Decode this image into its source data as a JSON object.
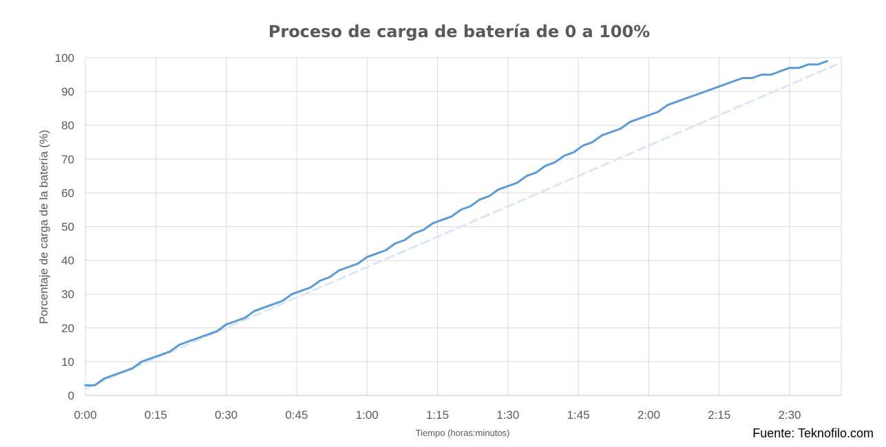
{
  "colors": {
    "series_measured": "#5b9bd5",
    "series_linear": "#dae6f4",
    "grid": "#d9d9d9",
    "text": "#595959"
  },
  "source": "Fuente: Teknofilo.com",
  "chart_data": {
    "type": "line",
    "title": "Proceso de carga de batería de 0 a 100%",
    "xlabel": "Tiempo (horas:minutos)",
    "ylabel": "Porcentaje de carga de la batería (%)",
    "xlim": [
      "0:00",
      "2:41"
    ],
    "ylim": [
      0,
      100
    ],
    "x_ticks": [
      "0:00",
      "0:15",
      "0:30",
      "0:45",
      "1:00",
      "1:15",
      "1:30",
      "1:45",
      "2:00",
      "2:15",
      "2:30"
    ],
    "y_ticks": [
      0,
      10,
      20,
      30,
      40,
      50,
      60,
      70,
      80,
      90,
      100
    ],
    "grid": true,
    "legend": "none",
    "series": [
      {
        "style": "solid",
        "x": [
          "0:00",
          "0:02",
          "0:04",
          "0:06",
          "0:08",
          "0:10",
          "0:12",
          "0:14",
          "0:16",
          "0:18",
          "0:20",
          "0:22",
          "0:24",
          "0:26",
          "0:28",
          "0:30",
          "0:32",
          "0:34",
          "0:36",
          "0:38",
          "0:40",
          "0:42",
          "0:44",
          "0:46",
          "0:48",
          "0:50",
          "0:52",
          "0:54",
          "0:56",
          "0:58",
          "1:00",
          "1:02",
          "1:04",
          "1:06",
          "1:08",
          "1:10",
          "1:12",
          "1:14",
          "1:16",
          "1:18",
          "1:20",
          "1:22",
          "1:24",
          "1:26",
          "1:28",
          "1:30",
          "1:32",
          "1:34",
          "1:36",
          "1:38",
          "1:40",
          "1:42",
          "1:44",
          "1:46",
          "1:48",
          "1:50",
          "1:52",
          "1:54",
          "1:56",
          "1:58",
          "2:00",
          "2:02",
          "2:04",
          "2:06",
          "2:08",
          "2:10",
          "2:12",
          "2:14",
          "2:16",
          "2:18",
          "2:20",
          "2:22",
          "2:24",
          "2:26",
          "2:28",
          "2:30",
          "2:32",
          "2:34",
          "2:36",
          "2:38"
        ],
        "y": [
          3,
          3,
          5,
          6,
          7,
          8,
          10,
          11,
          12,
          13,
          15,
          16,
          17,
          18,
          19,
          21,
          22,
          23,
          25,
          26,
          27,
          28,
          30,
          31,
          32,
          34,
          35,
          37,
          38,
          39,
          41,
          42,
          43,
          45,
          46,
          48,
          49,
          51,
          52,
          53,
          55,
          56,
          58,
          59,
          61,
          62,
          63,
          65,
          66,
          68,
          69,
          71,
          72,
          74,
          75,
          77,
          78,
          79,
          81,
          82,
          83,
          84,
          86,
          87,
          88,
          89,
          90,
          91,
          92,
          93,
          94,
          94,
          95,
          95,
          96,
          97,
          97,
          98,
          98,
          99
        ]
      },
      {
        "style": "dashed",
        "x": [
          "0:00",
          "2:40"
        ],
        "y": [
          2,
          98
        ]
      }
    ]
  }
}
